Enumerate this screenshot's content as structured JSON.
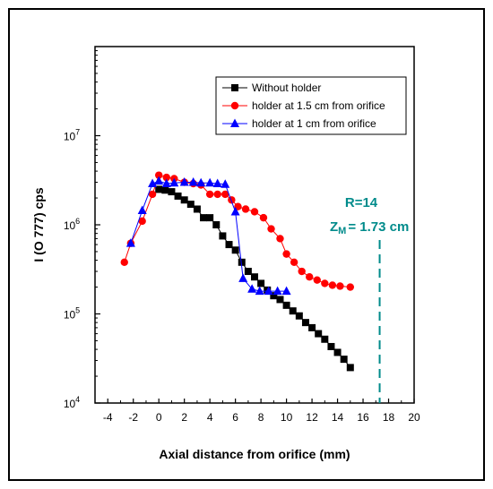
{
  "chart_data": {
    "type": "scatter",
    "title": "",
    "xlabel": "Axial distance from orifice (mm)",
    "ylabel": "I (O 777) cps",
    "xlim": [
      -5,
      20
    ],
    "ylim": [
      10000,
      100000000
    ],
    "yscale": "log",
    "x_ticks": [
      "-4",
      "-2",
      "0",
      "2",
      "4",
      "6",
      "8",
      "10",
      "12",
      "14",
      "16",
      "18",
      "20"
    ],
    "y_ticks": [
      {
        "value": 10000,
        "base": "10",
        "exp": "4"
      },
      {
        "value": 100000,
        "base": "10",
        "exp": "5"
      },
      {
        "value": 1000000,
        "base": "10",
        "exp": "6"
      },
      {
        "value": 10000000,
        "base": "10",
        "exp": "7"
      }
    ],
    "legend_position": "top-right",
    "grid": false,
    "series": [
      {
        "name": "Without holder",
        "color": "#000000",
        "marker": "square",
        "x": [
          0,
          0.5,
          1,
          1.5,
          2,
          2.5,
          3,
          3.5,
          4,
          4.5,
          5,
          5.5,
          6,
          6.5,
          7,
          7.5,
          8,
          8.5,
          9,
          9.5,
          10,
          10.5,
          11,
          11.5,
          12,
          12.5,
          13,
          13.5,
          14,
          14.5,
          15
        ],
        "y": [
          2500000,
          2450000,
          2350000,
          2100000,
          1900000,
          1700000,
          1500000,
          1200000,
          1200000,
          1000000,
          750000,
          600000,
          520000,
          380000,
          300000,
          260000,
          220000,
          185000,
          160000,
          145000,
          125000,
          108000,
          95000,
          80000,
          70000,
          60000,
          52000,
          43000,
          37000,
          31000,
          25000
        ]
      },
      {
        "name": "holder at 1.5 cm from orifice",
        "color": "#ff0000",
        "marker": "circle",
        "x": [
          -2.7,
          -2.2,
          -1.3,
          -0.5,
          0,
          0.6,
          1.2,
          2,
          2.7,
          3.3,
          4,
          4.6,
          5.2,
          5.7,
          6.2,
          6.8,
          7.5,
          8.2,
          8.8,
          9.5,
          10,
          10.6,
          11.2,
          11.8,
          12.4,
          13,
          13.6,
          14.2,
          15
        ],
        "y": [
          380000,
          620000,
          1100000,
          2200000,
          3600000,
          3400000,
          3300000,
          3000000,
          2900000,
          2800000,
          2200000,
          2200000,
          2200000,
          1900000,
          1600000,
          1500000,
          1400000,
          1200000,
          900000,
          700000,
          470000,
          380000,
          300000,
          260000,
          240000,
          220000,
          210000,
          205000,
          200000
        ]
      },
      {
        "name": "holder at 1 cm from orifice",
        "color": "#0000ff",
        "marker": "triangle",
        "x": [
          -2.2,
          -1.3,
          -0.5,
          0,
          0.6,
          1.2,
          2,
          2.7,
          3.3,
          4,
          4.6,
          5.2,
          6,
          6.6,
          7.3,
          7.9,
          8.6,
          9.3,
          10
        ],
        "y": [
          620000,
          1450000,
          2900000,
          3100000,
          2900000,
          2950000,
          3000000,
          3000000,
          2950000,
          2950000,
          2900000,
          2850000,
          1400000,
          250000,
          190000,
          180000,
          180000,
          180000,
          180000
        ]
      }
    ],
    "annotations": {
      "r_label": "R=14",
      "zm_main": "Z",
      "zm_sub": "M",
      "zm_value": "= 1.73 cm",
      "color": "#008b8b",
      "vline_x": 17.3
    }
  }
}
